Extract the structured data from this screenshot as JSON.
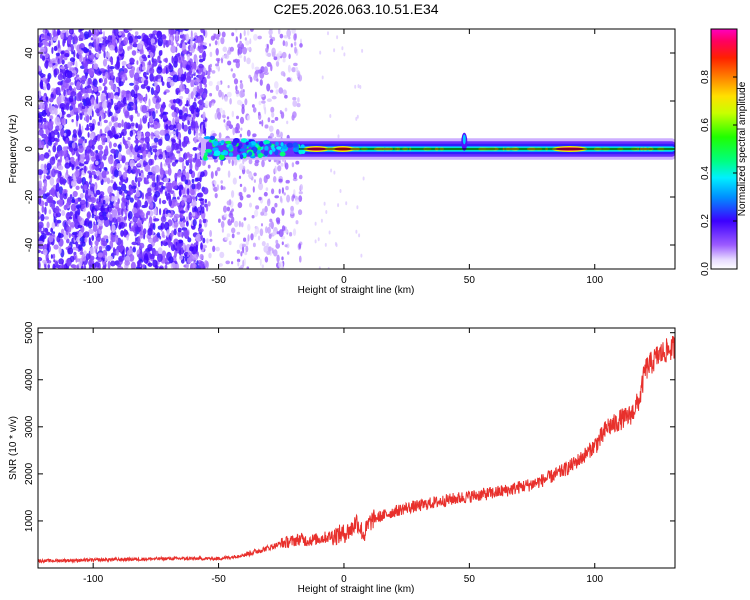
{
  "figure_title": "C2E5.2026.063.10.51.E34",
  "chart_data": [
    {
      "type": "heatmap",
      "name": "spectrogram",
      "title": "C2E5.2026.063.10.51.E34",
      "xlabel": "Height of straight line (km)",
      "ylabel": "Frequency (Hz)",
      "xlim": [
        -122,
        132
      ],
      "ylim": [
        -50,
        50
      ],
      "xticks": [
        -100,
        -50,
        0,
        50,
        100
      ],
      "xtick_labels": [
        "-100",
        "-50",
        "0",
        "50",
        "100"
      ],
      "yticks": [
        -40,
        -20,
        0,
        20,
        40
      ],
      "ytick_labels": [
        "-40",
        "-20",
        "0",
        "20",
        "40"
      ],
      "colorbar": {
        "label": "Normalized spectral amplitude",
        "range": [
          0.0,
          1.0
        ],
        "ticks": [
          0.0,
          0.2,
          0.4,
          0.6,
          0.8
        ],
        "tick_labels": [
          "0.0",
          "0.2",
          "0.4",
          "0.6",
          "0.8"
        ]
      },
      "features": {
        "noise_region_x": [
          -122,
          -55
        ],
        "sparse_noise_region_x": [
          -55,
          -17
        ],
        "carrier_frequency_hz": 0,
        "carrier_start_x": -55,
        "peak_segments": [
          {
            "x": [
              -15,
              -7
            ],
            "level": 0.95
          },
          {
            "x": [
              -4,
              3
            ],
            "level": 0.9
          },
          {
            "x": [
              84,
              96
            ],
            "level": 0.95
          }
        ],
        "spike_x": 48
      }
    },
    {
      "type": "line",
      "name": "snr",
      "xlabel": "Height of straight line (km)",
      "ylabel": "SNR (10 * v/v)",
      "xlim": [
        -122,
        132
      ],
      "ylim": [
        0,
        5100
      ],
      "xticks": [
        -100,
        -50,
        0,
        50,
        100
      ],
      "xtick_labels": [
        "-100",
        "-50",
        "0",
        "50",
        "100"
      ],
      "yticks": [
        1000,
        2000,
        3000,
        4000,
        5000
      ],
      "ytick_labels": [
        "1000",
        "2000",
        "3000",
        "4000",
        "5000"
      ],
      "line_color": "#e8302c",
      "series": [
        {
          "name": "SNR",
          "x": [
            -122,
            -110,
            -100,
            -90,
            -80,
            -70,
            -60,
            -50,
            -45,
            -40,
            -35,
            -30,
            -25,
            -20,
            -17,
            -15,
            -10,
            -5,
            0,
            3,
            5,
            8,
            10,
            12,
            15,
            20,
            25,
            30,
            35,
            40,
            45,
            50,
            55,
            60,
            65,
            70,
            75,
            80,
            85,
            90,
            95,
            100,
            103,
            105,
            108,
            110,
            113,
            115,
            118,
            120,
            125,
            128,
            132
          ],
          "y": [
            150,
            160,
            170,
            180,
            190,
            200,
            200,
            200,
            230,
            280,
            350,
            430,
            520,
            580,
            620,
            580,
            620,
            680,
            730,
            820,
            1000,
            700,
            950,
            1050,
            1100,
            1200,
            1280,
            1320,
            1380,
            1430,
            1480,
            1520,
            1560,
            1600,
            1650,
            1720,
            1780,
            1880,
            2000,
            2150,
            2350,
            2600,
            2800,
            3000,
            3050,
            3150,
            3200,
            3300,
            3600,
            4200,
            4500,
            4600,
            4700
          ]
        }
      ]
    }
  ]
}
